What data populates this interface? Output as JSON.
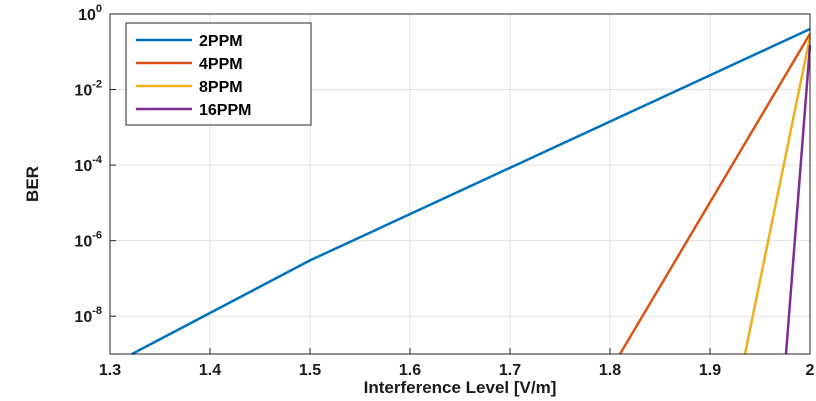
{
  "chart_data": {
    "type": "line",
    "title": "",
    "xlabel": "Interference Level [V/m]",
    "ylabel": "BER",
    "xlim": [
      1.3,
      2.0
    ],
    "ylim": [
      1e-09,
      1.0
    ],
    "yscale": "log",
    "grid": true,
    "legend_position": "top-left",
    "x_ticks": [
      "1.3",
      "1.4",
      "1.5",
      "1.6",
      "1.7",
      "1.8",
      "1.9",
      "2"
    ],
    "x_tick_values": [
      1.3,
      1.4,
      1.5,
      1.6,
      1.7,
      1.8,
      1.9,
      2.0
    ],
    "y_ticks": [
      {
        "base": "10",
        "exp": "0",
        "value": 1
      },
      {
        "base": "10",
        "exp": "-2",
        "value": 0.01
      },
      {
        "base": "10",
        "exp": "-4",
        "value": 0.0001
      },
      {
        "base": "10",
        "exp": "-6",
        "value": 1e-06
      },
      {
        "base": "10",
        "exp": "-8",
        "value": 1e-08
      }
    ],
    "series": [
      {
        "name": "2PPM",
        "color": "#0072BD",
        "x": [
          1.322,
          1.5,
          2.0
        ],
        "y": [
          1e-09,
          3e-07,
          0.4
        ]
      },
      {
        "name": "4PPM",
        "color": "#D95319",
        "x": [
          1.81,
          2.0
        ],
        "y": [
          1e-09,
          0.3
        ]
      },
      {
        "name": "8PPM",
        "color": "#EDB120",
        "x": [
          1.935,
          2.0
        ],
        "y": [
          1e-09,
          0.25
        ]
      },
      {
        "name": "16PPM",
        "color": "#7E2F8E",
        "x": [
          1.976,
          2.0
        ],
        "y": [
          1e-09,
          0.15
        ]
      }
    ]
  }
}
